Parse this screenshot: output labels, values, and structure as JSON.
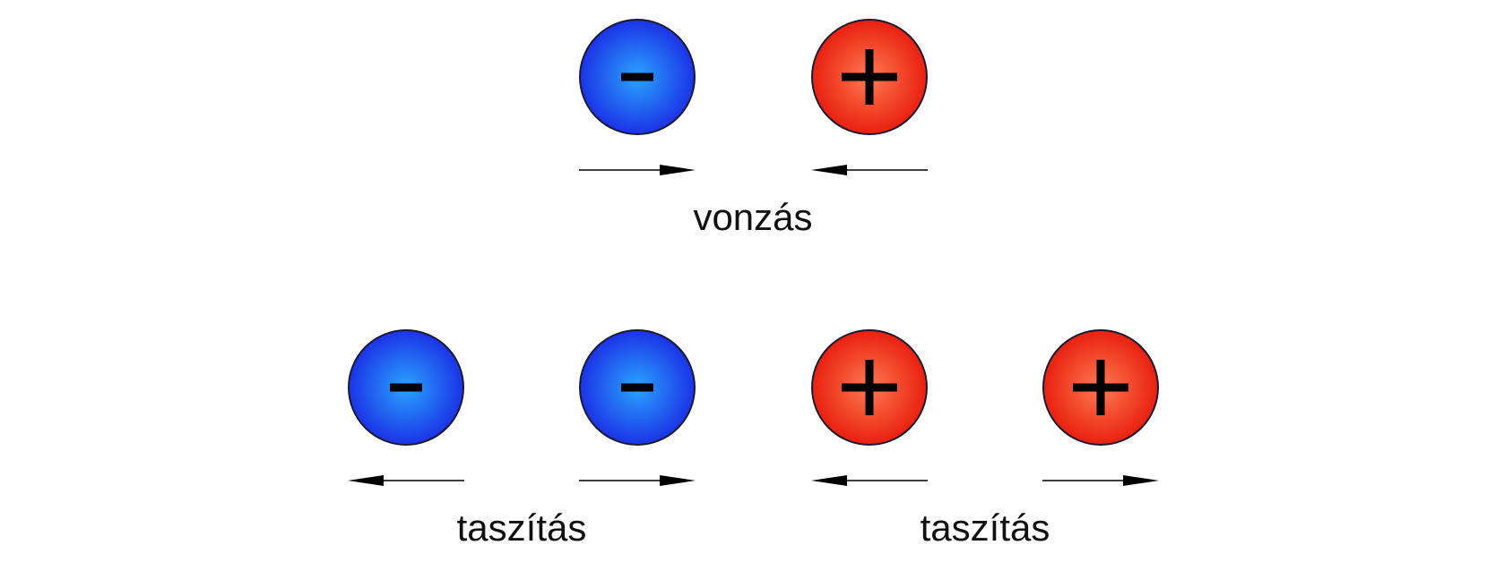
{
  "colors": {
    "negative_center": "#2aa3ff",
    "negative_edge": "#1b33e6",
    "positive_center": "#ff7a52",
    "positive_edge": "#e8200f",
    "outline": "#1a1a33",
    "sign": "#000000",
    "arrow": "#000000"
  },
  "groups": [
    {
      "caption": "vonzás",
      "charges": [
        {
          "sign": "-",
          "arrow": "right"
        },
        {
          "sign": "+",
          "arrow": "left"
        }
      ]
    },
    {
      "caption": "taszítás",
      "charges": [
        {
          "sign": "-",
          "arrow": "left"
        },
        {
          "sign": "-",
          "arrow": "right"
        }
      ]
    },
    {
      "caption": "taszítás",
      "charges": [
        {
          "sign": "+",
          "arrow": "left"
        },
        {
          "sign": "+",
          "arrow": "right"
        }
      ]
    }
  ]
}
